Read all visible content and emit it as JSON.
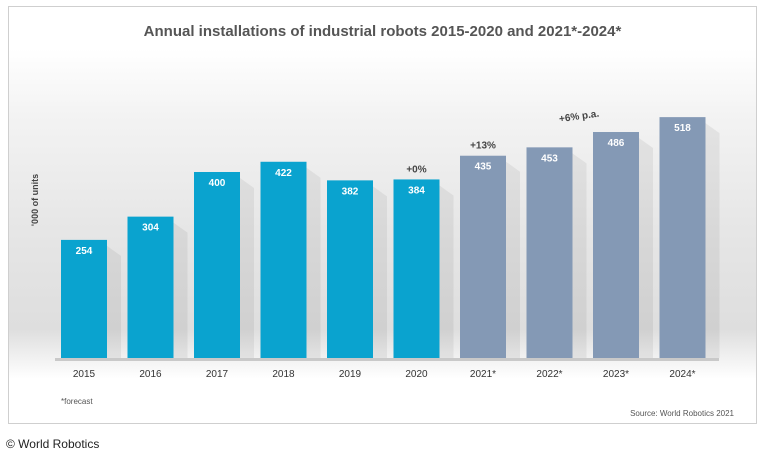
{
  "colors": {
    "actual_bar": "#0aa3cf",
    "forecast_bar": "#8499b5",
    "bar_label": "#ffffff",
    "annotation": "#444444"
  },
  "chart_data": {
    "type": "bar",
    "title": "Annual installations of industrial robots 2015-2020 and 2021*-2024*",
    "ylabel": "'000 of units",
    "xlabel": "",
    "categories": [
      "2015",
      "2016",
      "2017",
      "2018",
      "2019",
      "2020",
      "2021*",
      "2022*",
      "2023*",
      "2024*"
    ],
    "values": [
      254,
      304,
      400,
      422,
      382,
      384,
      435,
      453,
      486,
      518
    ],
    "forecast_flags": [
      false,
      false,
      false,
      false,
      false,
      false,
      true,
      true,
      true,
      true
    ],
    "ylim": [
      0,
      520
    ],
    "grid": false,
    "annotations": [
      {
        "text": "+0%",
        "category": "2020"
      },
      {
        "text": "+13%",
        "category": "2021*"
      },
      {
        "text": "+6% p.a.",
        "category": "2022*"
      }
    ]
  },
  "footnote": "*forecast",
  "source": "Source: World Robotics 2021",
  "copyright": "© World Robotics"
}
